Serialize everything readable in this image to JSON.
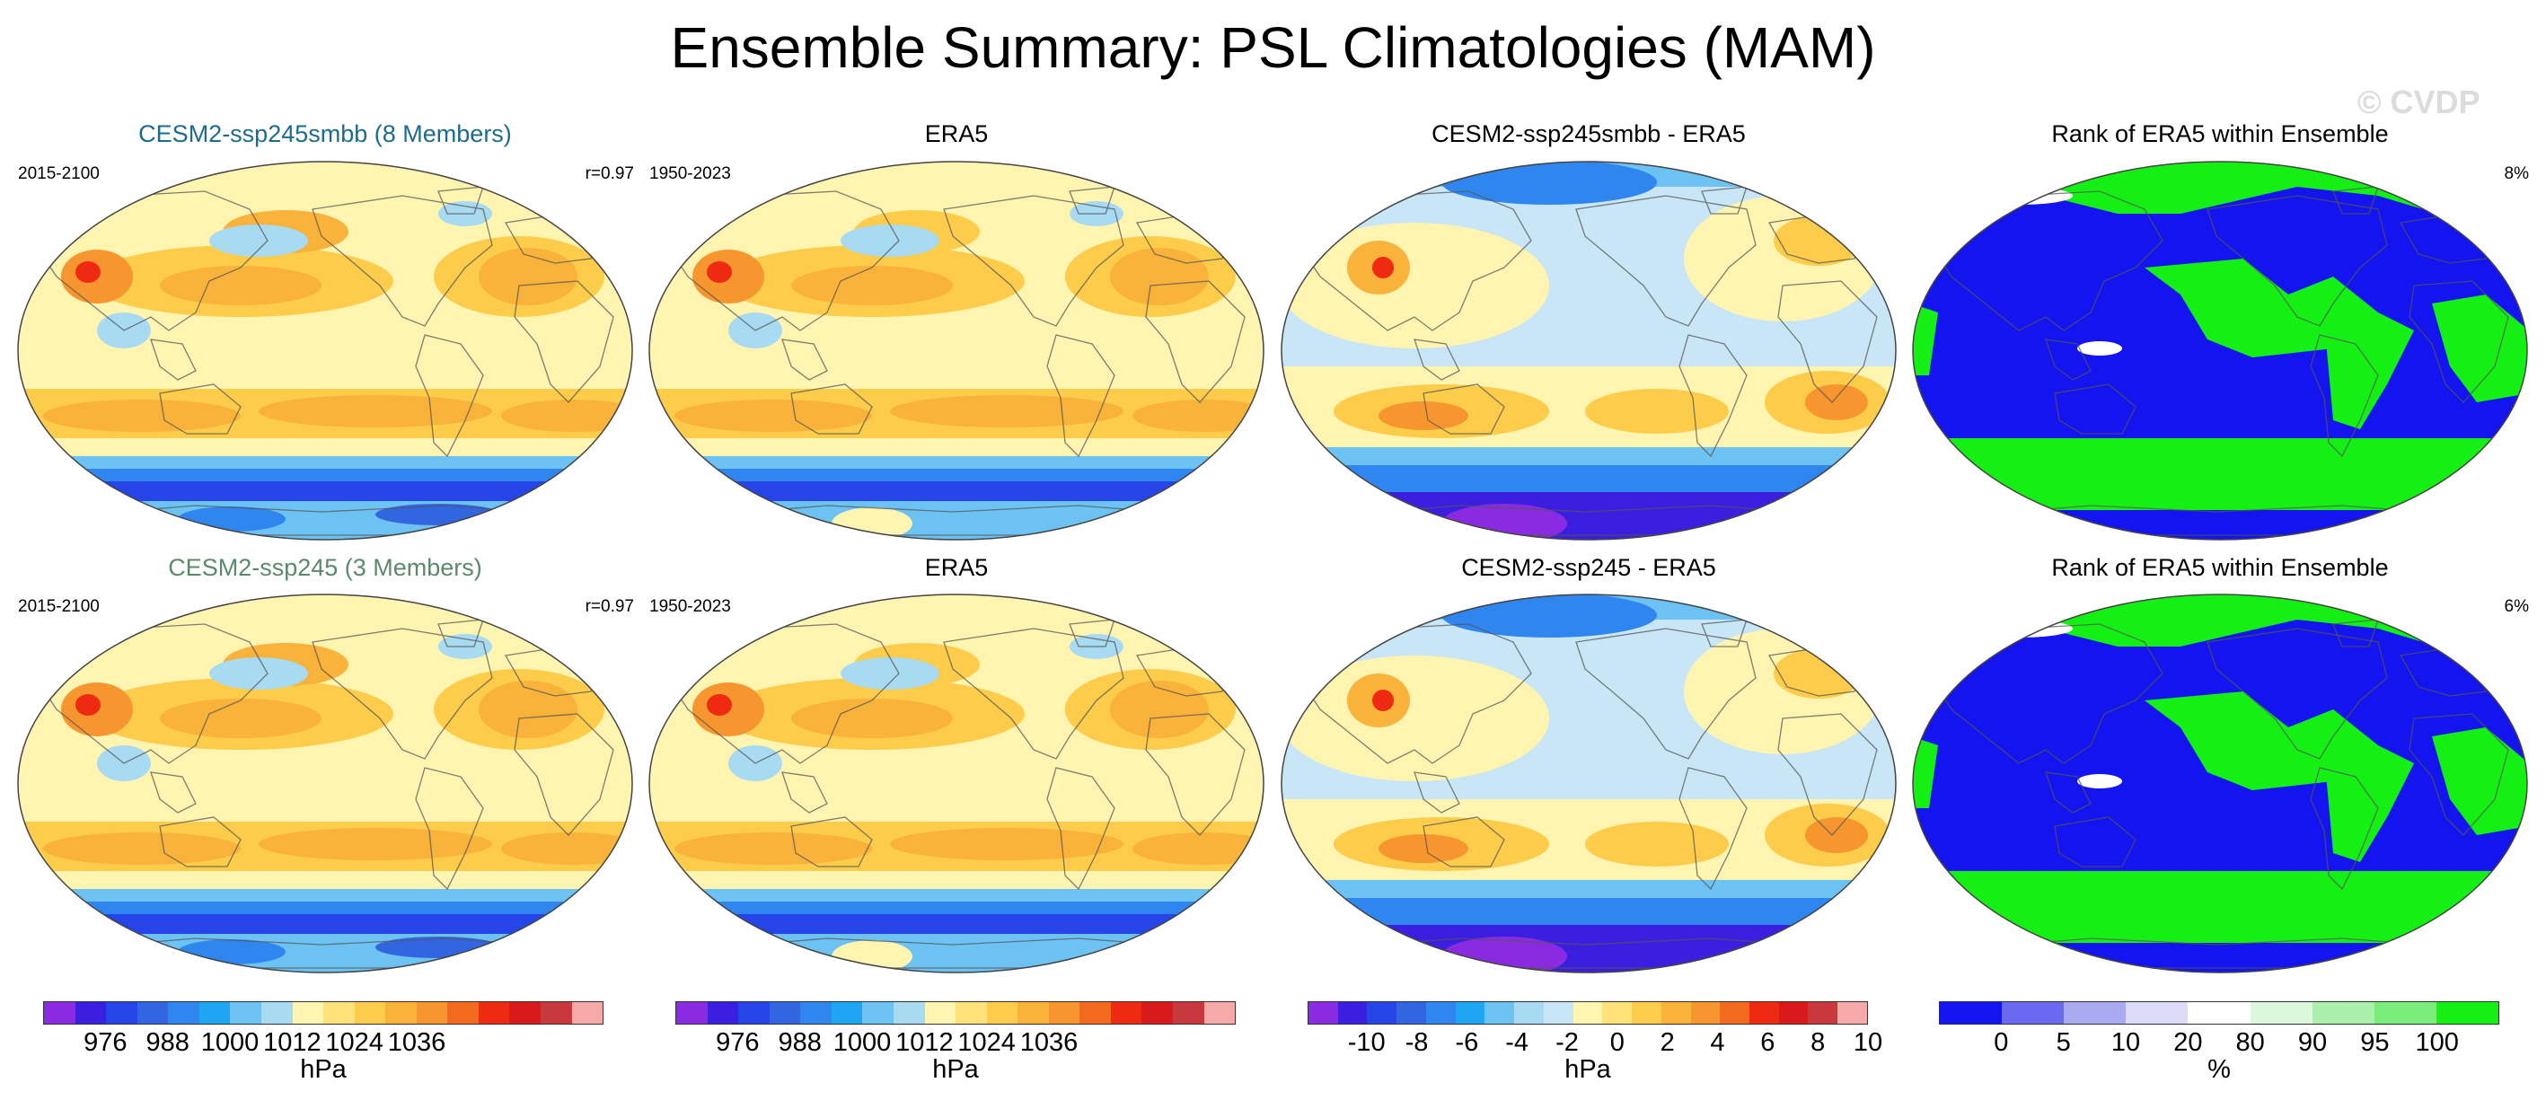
{
  "title": "Ensemble Summary: PSL Climatologies (MAM)",
  "watermark": "© CVDP",
  "rows": [
    {
      "panels": [
        {
          "title": "CESM2-ssp245smbb (8 Members)",
          "title_color": "#1e6b8f",
          "left": "2015-2100",
          "right": "r=0.97",
          "kind": "psl"
        },
        {
          "title": "ERA5",
          "title_color": "#000000",
          "left": "1950-2023",
          "right": "",
          "kind": "psl_obs"
        },
        {
          "title": "CESM2-ssp245smbb - ERA5",
          "title_color": "#000000",
          "left": "",
          "right": "",
          "kind": "diff"
        },
        {
          "title": "Rank of ERA5 within Ensemble",
          "title_color": "#000000",
          "left": "",
          "right": "8%",
          "kind": "rank"
        }
      ]
    },
    {
      "panels": [
        {
          "title": "CESM2-ssp245 (3 Members)",
          "title_color": "#5b8a6a",
          "left": "2015-2100",
          "right": "r=0.97",
          "kind": "psl"
        },
        {
          "title": "ERA5",
          "title_color": "#000000",
          "left": "1950-2023",
          "right": "",
          "kind": "psl_obs"
        },
        {
          "title": "CESM2-ssp245 - ERA5",
          "title_color": "#000000",
          "left": "",
          "right": "",
          "kind": "diff"
        },
        {
          "title": "Rank of ERA5 within Ensemble",
          "title_color": "#000000",
          "left": "",
          "right": "6%",
          "kind": "rank"
        }
      ]
    }
  ],
  "colorbars": [
    {
      "unit": "hPa",
      "ticks": [
        "976",
        "988",
        "1000",
        "1012",
        "1024",
        "1036"
      ],
      "colors": [
        "#8a2be2",
        "#3a1fe0",
        "#2545e8",
        "#3266e0",
        "#2f86ee",
        "#1fa6f2",
        "#6cc2f2",
        "#a8daf2",
        "#fff4b0",
        "#ffe17a",
        "#fccc4a",
        "#f9b23a",
        "#f7962e",
        "#f26a1e",
        "#ee2a12",
        "#d81a1a",
        "#c8393e",
        "#f5a9a9"
      ]
    },
    {
      "unit": "hPa",
      "ticks": [
        "976",
        "988",
        "1000",
        "1012",
        "1024",
        "1036"
      ],
      "colors": [
        "#8a2be2",
        "#3a1fe0",
        "#2545e8",
        "#3266e0",
        "#2f86ee",
        "#1fa6f2",
        "#6cc2f2",
        "#a8daf2",
        "#fff4b0",
        "#ffe17a",
        "#fccc4a",
        "#f9b23a",
        "#f7962e",
        "#f26a1e",
        "#ee2a12",
        "#d81a1a",
        "#c8393e",
        "#f5a9a9"
      ]
    },
    {
      "unit": "hPa",
      "ticks": [
        "-10",
        "-8",
        "-6",
        "-4",
        "-2",
        "0",
        "2",
        "4",
        "6",
        "8",
        "10"
      ],
      "colors": [
        "#8a2be2",
        "#3a1fe0",
        "#2545e8",
        "#3266e0",
        "#2f86ee",
        "#1fa6f2",
        "#6cc2f2",
        "#a8daf2",
        "#c8e6f6",
        "#fff4b0",
        "#ffe17a",
        "#fccc4a",
        "#f9b23a",
        "#f7962e",
        "#f26a1e",
        "#ee2a12",
        "#d81a1a",
        "#c8393e",
        "#f5a9a9"
      ]
    },
    {
      "unit": "%",
      "ticks": [
        "0",
        "5",
        "10",
        "20",
        "80",
        "90",
        "95",
        "100"
      ],
      "colors": [
        "#1414f0",
        "#6a6af0",
        "#aaaaf0",
        "#dcdcf8",
        "#ffffff",
        "#dcf8dc",
        "#aaf0aa",
        "#7aec7a",
        "#14f014"
      ]
    }
  ]
}
